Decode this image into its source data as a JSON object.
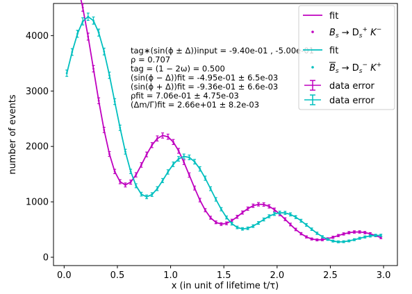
{
  "chart_data": {
    "type": "line",
    "xlabel": "x (in unit of lifetime t/τ)",
    "ylabel": "number of events",
    "xlim": [
      -0.1,
      3.13
    ],
    "ylim": [
      -150,
      4580
    ],
    "xticks": [
      "0.0",
      "0.5",
      "1.0",
      "1.5",
      "2.0",
      "2.5",
      "3.0"
    ],
    "xtick_values": [
      0.0,
      0.5,
      1.0,
      1.5,
      2.0,
      2.5,
      3.0
    ],
    "yticks": [
      "0",
      "1000",
      "2000",
      "3000",
      "4000"
    ],
    "ytick_values": [
      0,
      1000,
      2000,
      3000,
      4000
    ],
    "grid": false,
    "legend_position": "top-right",
    "colors": {
      "series1": "#bf00bf",
      "series2": "#00bfbf"
    },
    "model": {
      "x_start": 0.025,
      "x_step": 0.05,
      "n_points": 60,
      "amplitude": 4200,
      "decay_rate": 1.0,
      "oscillation_frequency": 26.6,
      "mixing_amplitude": 0.45
    },
    "series": [
      {
        "name": "fit",
        "role": "fit",
        "color": "#bf00bf",
        "phase": -0.495
      },
      {
        "name": "B_s → D_s^+ K^-",
        "role": "data",
        "color": "#bf00bf",
        "phase": -0.495
      },
      {
        "name": "fit",
        "role": "fit",
        "color": "#00bfbf",
        "phase": -0.936
      },
      {
        "name": "B̄_s → D_s^- K^+",
        "role": "data",
        "color": "#00bfbf",
        "phase": -0.936
      }
    ],
    "legend": {
      "fit1": "fit",
      "data1_main": "B",
      "data1_sub": "s",
      "data1_rest": " → D",
      "data1_sub2": "s",
      "data1_sup2": "+",
      "data1_tail": " K",
      "data1_sup3": "−",
      "fit2": "fit",
      "data2_main": "B",
      "data2_sub": "s",
      "data2_rest": " → D",
      "data2_sub2": "s",
      "data2_sup2": "−",
      "data2_tail": " K",
      "data2_sup3": "+",
      "err1": "data error",
      "err2": "data error"
    },
    "annotations": [
      "tag∗(sin(ϕ ± Δ))input = -9.40e-01 , -5.00e-01",
      "ρ = 0.707",
      "tag = (1 − 2ω) = 0.500",
      "(sin(ϕ − Δ))fit = -4.95e-01 ± 6.5e-03",
      "(sin(ϕ + Δ))fit = -9.36e-01 ± 6.6e-03",
      "ρfit = 7.06e-01 ± 4.75e-03",
      "(Δm/Γ)fit = 2.66e+01 ± 8.2e-03"
    ]
  }
}
